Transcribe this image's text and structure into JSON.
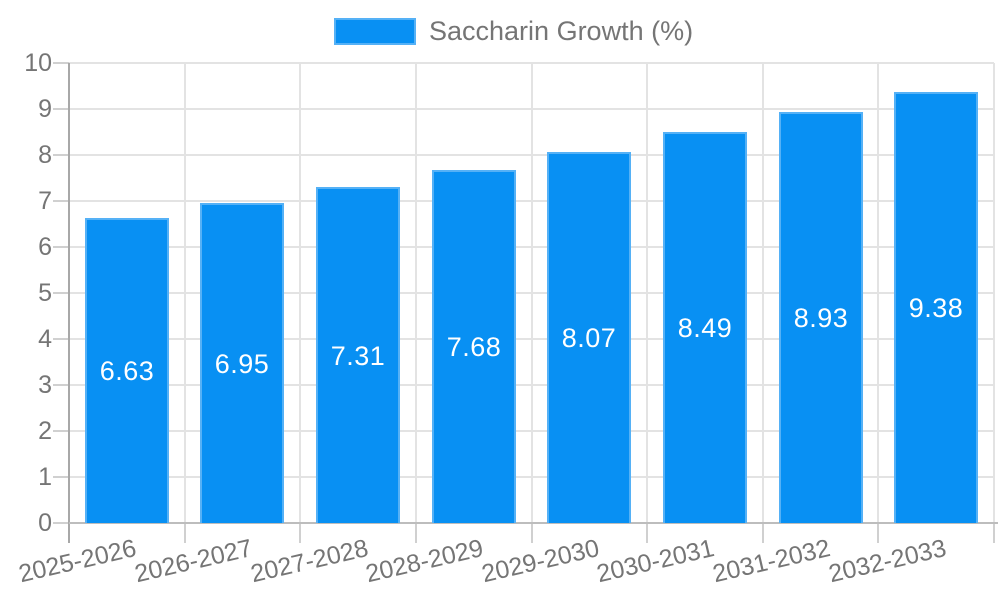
{
  "chart_data": {
    "type": "bar",
    "series_name": "Saccharin Growth (%)",
    "legend_position": "top",
    "categories": [
      "2025-2026",
      "2026-2027",
      "2027-2028",
      "2028-2029",
      "2029-2030",
      "2030-2031",
      "2031-2032",
      "2032-2033"
    ],
    "values": [
      6.63,
      6.95,
      7.31,
      7.68,
      8.07,
      8.49,
      8.93,
      9.38
    ],
    "data_labels": [
      "6.63",
      "6.95",
      "7.31",
      "7.68",
      "8.07",
      "8.49",
      "8.93",
      "9.38"
    ],
    "ylim": [
      0,
      10
    ],
    "ytick_step": 1,
    "yticks": [
      "0",
      "1",
      "2",
      "3",
      "4",
      "5",
      "6",
      "7",
      "8",
      "9",
      "10"
    ],
    "grid": true,
    "colors": {
      "bar_fill": "#0890f3",
      "bar_border": "#55b1f6",
      "value_label_text": "#ffffff",
      "axis_text": "#757575",
      "gridline": "#e3e3e3",
      "y_axis_line": "#a8a8a8",
      "x_axis_line": "#bdbdbd",
      "tick_mark": "#d0d0d0"
    }
  }
}
